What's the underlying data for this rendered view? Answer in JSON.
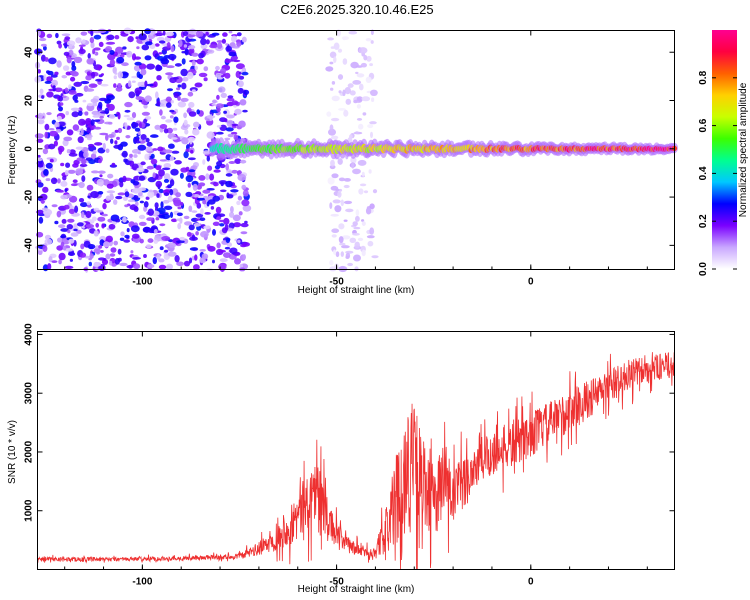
{
  "title": "C2E6.2025.320.10.46.E25",
  "chart_data": [
    {
      "type": "heatmap",
      "xlabel": "Height of straight line (km)",
      "ylabel": "Frequency (Hz)",
      "xlim": [
        -127,
        37
      ],
      "ylim": [
        -50,
        49
      ],
      "x_ticks": [
        -100,
        -50,
        0
      ],
      "y_ticks": [
        -40,
        -20,
        0,
        20,
        40
      ],
      "colorbar": {
        "label": "Normalized spectral amplitude",
        "range": [
          0,
          1
        ],
        "ticks": [
          0.0,
          0.2,
          0.4,
          0.6,
          0.8
        ],
        "tick_labels": [
          "0.0",
          "0.2",
          "0.4",
          "0.6",
          "0.8"
        ],
        "colors": [
          "#ffffff",
          "#c9a7ff",
          "#7a00ff",
          "#0000ff",
          "#00c8ff",
          "#00ff90",
          "#3cff00",
          "#c8ff00",
          "#ffd000",
          "#ff6000",
          "#ff0040",
          "#ff0090"
        ]
      },
      "regions": [
        {
          "x_range": [
            -127,
            -73
          ],
          "f_range": [
            -50,
            49
          ],
          "level": 0.15,
          "desc": "broadband noise"
        },
        {
          "x_range": [
            -52,
            -40
          ],
          "f_range": [
            -50,
            49
          ],
          "level": 0.05,
          "desc": "faint noise band"
        },
        {
          "x_range": [
            -82,
            37
          ],
          "f_center": 0,
          "level_start": 0.4,
          "level_end": 0.95,
          "desc": "narrow carrier signal"
        }
      ],
      "grid": false
    },
    {
      "type": "line",
      "xlabel": "Height of straight line (km)",
      "ylabel": "SNR (10 * v/v)",
      "xlim": [
        -127,
        37
      ],
      "ylim": [
        0,
        4050
      ],
      "x_ticks": [
        -100,
        -50,
        0
      ],
      "y_ticks": [
        1000,
        2000,
        3000,
        4000
      ],
      "color": "#ee3030",
      "envelope": {
        "x": [
          -127,
          -110,
          -90,
          -75,
          -70,
          -65,
          -60,
          -57,
          -55,
          -52,
          -48,
          -45,
          -42,
          -40,
          -37,
          -35,
          -33,
          -31,
          -29,
          -27,
          -25,
          -22,
          -20,
          -15,
          -10,
          -5,
          0,
          5,
          10,
          15,
          20,
          25,
          30,
          37
        ],
        "mean": [
          180,
          170,
          190,
          220,
          350,
          550,
          900,
          1200,
          1400,
          800,
          450,
          350,
          280,
          300,
          700,
          1100,
          1500,
          1800,
          1600,
          1300,
          1200,
          1500,
          1200,
          1700,
          2000,
          2100,
          2300,
          2500,
          2700,
          2900,
          3100,
          3300,
          3400,
          3500
        ],
        "amplitude": [
          60,
          60,
          60,
          80,
          200,
          350,
          700,
          900,
          1000,
          500,
          250,
          200,
          150,
          200,
          700,
          1300,
          1500,
          2000,
          1700,
          1200,
          1000,
          1300,
          900,
          700,
          700,
          650,
          650,
          600,
          600,
          550,
          500,
          450,
          400,
          350
        ]
      },
      "grid": false
    }
  ]
}
